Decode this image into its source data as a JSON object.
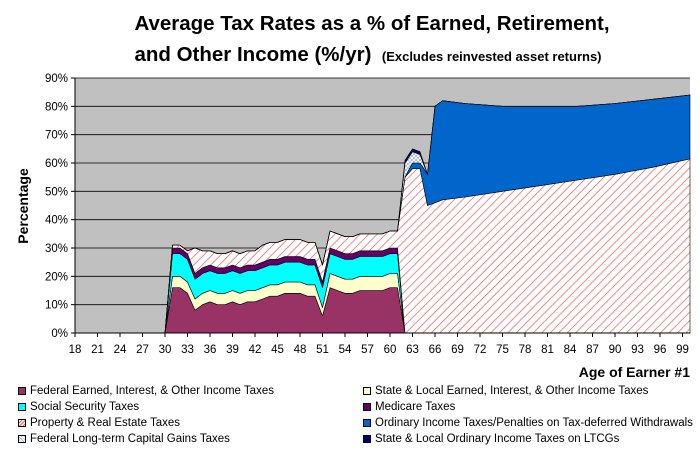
{
  "chart_data": {
    "type": "area",
    "title_line1": "Average Tax Rates as a % of Earned, Retirement,",
    "title_line2": "and Other Income (%/yr)",
    "title_note": "(Excludes reinvested asset returns)",
    "ylabel": "Percentage",
    "xlabel": "Age of Earner #1",
    "xlim": [
      18,
      100
    ],
    "ylim": [
      0,
      90
    ],
    "x_ticks": [
      18,
      21,
      24,
      27,
      30,
      33,
      36,
      39,
      42,
      45,
      48,
      51,
      54,
      57,
      60,
      63,
      66,
      69,
      72,
      75,
      78,
      81,
      84,
      87,
      90,
      93,
      96,
      99
    ],
    "y_ticks": [
      "0%",
      "10%",
      "20%",
      "30%",
      "40%",
      "50%",
      "60%",
      "70%",
      "80%",
      "90%"
    ],
    "grid": "horizontal",
    "legend_position": "bottom",
    "series": [
      {
        "name": "Federal Earned, Interest, & Other Income Taxes",
        "color": "#993366",
        "pattern": "solid",
        "x": [
          30,
          31,
          32,
          33,
          34,
          35,
          36,
          37,
          38,
          39,
          40,
          41,
          42,
          43,
          44,
          45,
          46,
          47,
          48,
          49,
          50,
          51,
          52,
          53,
          54,
          55,
          56,
          57,
          58,
          59,
          60,
          61,
          62,
          63,
          100
        ],
        "values": [
          0,
          16,
          16,
          14,
          8,
          10,
          11,
          10,
          10,
          11,
          10,
          11,
          11,
          12,
          13,
          13,
          14,
          14,
          14,
          13,
          13,
          6,
          16,
          15,
          14,
          14,
          15,
          15,
          15,
          15,
          16,
          16,
          0,
          0,
          0
        ]
      },
      {
        "name": "State & Local Earned, Interest, & Other Income Taxes",
        "color": "#ffffcc",
        "pattern": "solid",
        "x": [
          30,
          31,
          32,
          33,
          34,
          35,
          36,
          37,
          38,
          39,
          40,
          41,
          42,
          43,
          44,
          45,
          46,
          47,
          48,
          49,
          50,
          51,
          52,
          53,
          54,
          55,
          56,
          57,
          58,
          59,
          60,
          61,
          62,
          63,
          100
        ],
        "values": [
          0,
          4,
          4,
          4,
          4,
          4,
          4,
          4,
          4,
          4,
          4,
          4,
          4,
          4,
          4,
          4,
          4,
          4,
          4,
          4,
          4,
          3,
          5,
          5,
          5,
          5,
          5,
          5,
          5,
          5,
          5,
          5,
          0,
          0,
          0
        ]
      },
      {
        "name": "Social Security Taxes",
        "color": "#00ffff",
        "pattern": "solid",
        "x": [
          30,
          31,
          32,
          33,
          34,
          35,
          36,
          37,
          38,
          39,
          40,
          41,
          42,
          43,
          44,
          45,
          46,
          47,
          48,
          49,
          50,
          51,
          52,
          53,
          54,
          55,
          56,
          57,
          58,
          59,
          60,
          61,
          62,
          63,
          100
        ],
        "values": [
          0,
          8,
          8,
          8,
          7,
          7,
          7,
          7,
          7,
          7,
          7,
          7,
          7,
          7,
          7,
          7,
          7,
          7,
          7,
          7,
          7,
          7,
          7,
          7,
          7,
          7,
          7,
          7,
          7,
          7,
          7,
          7,
          0,
          0,
          0
        ]
      },
      {
        "name": "Medicare Taxes",
        "color": "#660066",
        "pattern": "solid",
        "x": [
          30,
          31,
          32,
          33,
          34,
          35,
          36,
          37,
          38,
          39,
          40,
          41,
          42,
          43,
          44,
          45,
          46,
          47,
          48,
          49,
          50,
          51,
          52,
          53,
          54,
          55,
          56,
          57,
          58,
          59,
          60,
          61,
          62,
          63,
          100
        ],
        "values": [
          0,
          2,
          2,
          2,
          2,
          2,
          2,
          2,
          2,
          2,
          2,
          2,
          2,
          2,
          2,
          2,
          2,
          2,
          2,
          2,
          2,
          2,
          2,
          2,
          2,
          2,
          2,
          2,
          2,
          2,
          2,
          2,
          0,
          0,
          0
        ]
      },
      {
        "name": "Property & Real Estate Taxes",
        "color": "#ff9999",
        "pattern": "diagonal",
        "x": [
          30,
          31,
          32,
          33,
          34,
          35,
          36,
          37,
          38,
          39,
          40,
          41,
          42,
          43,
          44,
          45,
          46,
          47,
          48,
          49,
          50,
          51,
          52,
          53,
          54,
          55,
          56,
          57,
          58,
          59,
          60,
          61,
          62,
          63,
          64,
          65,
          66,
          67,
          70,
          75,
          80,
          85,
          90,
          95,
          100
        ],
        "values": [
          0,
          1,
          1,
          1,
          9,
          6,
          5,
          5,
          5,
          5,
          5,
          5,
          5,
          6,
          6,
          6,
          6,
          6,
          6,
          6,
          6,
          6,
          6,
          6,
          6,
          6,
          6,
          6,
          6,
          6,
          6,
          6,
          55,
          58,
          58,
          45,
          46,
          47,
          48,
          50,
          52,
          54,
          56,
          58.5,
          61.5
        ]
      },
      {
        "name": "Ordinary Income Taxes/Penalties on Tax-deferred Withdrawals",
        "color": "#0066cc",
        "pattern": "solid",
        "x": [
          30,
          62,
          63,
          64,
          65,
          66,
          67,
          70,
          75,
          80,
          85,
          90,
          95,
          100
        ],
        "values": [
          0,
          0,
          2,
          2,
          11,
          34,
          35,
          33,
          30,
          28,
          26,
          25,
          24,
          22.5
        ]
      },
      {
        "name": "Federal Long-term Capital Gains Taxes",
        "color": "#ffffff",
        "pattern": "crosshatch",
        "x": [
          30,
          61,
          62,
          63,
          64,
          65,
          100
        ],
        "values": [
          0,
          0,
          5,
          4,
          3,
          0,
          0
        ]
      },
      {
        "name": "State & Local Ordinary Income Taxes on LTCGs",
        "color": "#000066",
        "pattern": "solid",
        "x": [
          30,
          61,
          62,
          63,
          64,
          65,
          100
        ],
        "values": [
          0,
          0,
          1,
          1,
          1,
          0,
          0
        ]
      }
    ]
  }
}
